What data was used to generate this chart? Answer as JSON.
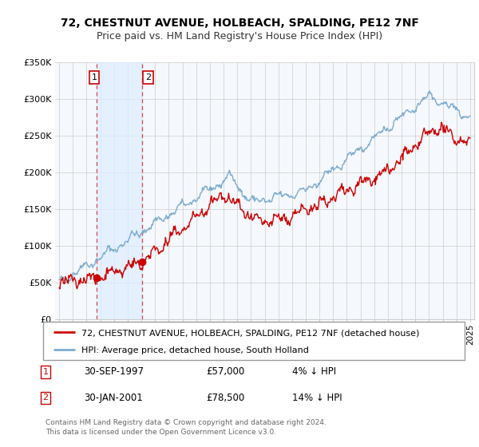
{
  "title": "72, CHESTNUT AVENUE, HOLBEACH, SPALDING, PE12 7NF",
  "subtitle": "Price paid vs. HM Land Registry's House Price Index (HPI)",
  "legend_label_red": "72, CHESTNUT AVENUE, HOLBEACH, SPALDING, PE12 7NF (detached house)",
  "legend_label_blue": "HPI: Average price, detached house, South Holland",
  "annotation1_date": "30-SEP-1997",
  "annotation1_price": "£57,000",
  "annotation1_hpi": "4% ↓ HPI",
  "annotation2_date": "30-JAN-2001",
  "annotation2_price": "£78,500",
  "annotation2_hpi": "14% ↓ HPI",
  "footer": "Contains HM Land Registry data © Crown copyright and database right 2024.\nThis data is licensed under the Open Government Licence v3.0.",
  "red_color": "#cc0000",
  "blue_color": "#7aabcf",
  "shade_color": "#ddeeff",
  "ylim": [
    0,
    350000
  ],
  "yticks": [
    0,
    50000,
    100000,
    150000,
    200000,
    250000,
    300000,
    350000
  ],
  "ytick_labels": [
    "£0",
    "£50K",
    "£100K",
    "£150K",
    "£200K",
    "£250K",
    "£300K",
    "£350K"
  ],
  "sale1_x": 1997.75,
  "sale1_y": 57000,
  "sale2_x": 2001.08,
  "sale2_y": 78500,
  "xlim_left": 1994.7,
  "xlim_right": 2025.3,
  "plot_bg": "#f5f8fc",
  "grid_color": "#cccccc",
  "title_fontsize": 10,
  "subtitle_fontsize": 9
}
